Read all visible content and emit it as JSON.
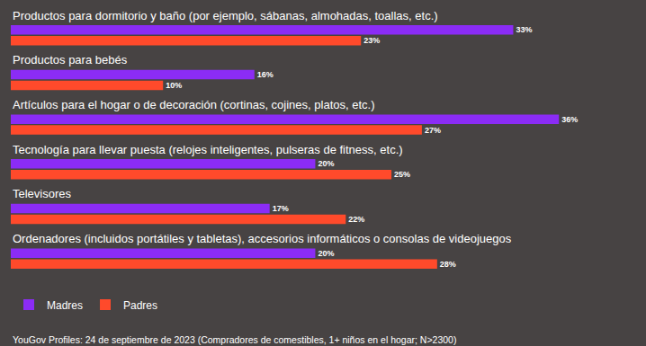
{
  "chart_data": {
    "type": "bar",
    "orientation": "horizontal",
    "data_labels": true,
    "legend": "bottom left",
    "categories": [
      "Productos para dormitorio y baño (por ejemplo, sábanas, almohadas, toallas, etc.)",
      "Productos para bebés",
      "Artículos para el hogar o de decoración (cortinas, cojines, platos, etc.)",
      "Tecnología para llevar puesta (relojes inteligentes, pulseras de fitness, etc.)",
      "Televisores",
      "Ordenadores (incluidos portátiles y tabletas), accesorios informáticos o consolas de videojuegos"
    ],
    "series": [
      {
        "name": "Madres",
        "color": "#8b2cf5",
        "values": [
          33,
          16,
          36,
          20,
          17,
          20
        ],
        "value_labels": [
          "33%",
          "16%",
          "36%",
          "20%",
          "17%",
          "20%"
        ]
      },
      {
        "name": "Padres",
        "color": "#ff4a2b",
        "values": [
          23,
          10,
          27,
          25,
          22,
          28
        ],
        "value_labels": [
          "23%",
          "10%",
          "27%",
          "25%",
          "22%",
          "28%"
        ]
      }
    ],
    "source": "YouGov Profiles: 24 de septiembre de 2023 (Compradores de comestibles, 1+ niños en el hogar; N>2300)"
  }
}
